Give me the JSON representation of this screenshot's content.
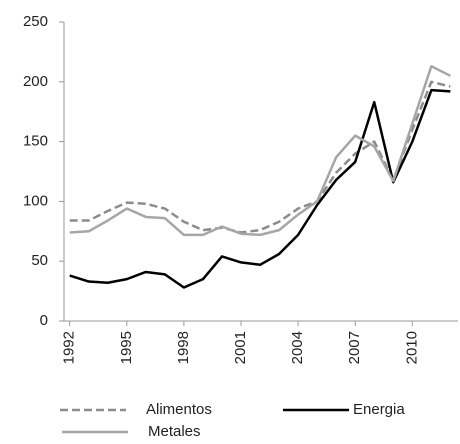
{
  "chart_data": {
    "type": "line",
    "x": [
      1992,
      1993,
      1994,
      1995,
      1996,
      1997,
      1998,
      1999,
      2000,
      2001,
      2002,
      2003,
      2004,
      2005,
      2006,
      2007,
      2008,
      2009,
      2010,
      2011,
      2012
    ],
    "series": [
      {
        "name": "Alimentos",
        "color": "#8c8c8c",
        "dashed": true,
        "values": [
          84,
          84,
          92,
          99,
          98,
          94,
          83,
          76,
          78,
          74,
          76,
          83,
          94,
          100,
          124,
          140,
          150,
          118,
          160,
          200,
          196
        ]
      },
      {
        "name": "Energia",
        "color": "#000000",
        "dashed": false,
        "values": [
          38,
          33,
          32,
          35,
          41,
          39,
          28,
          35,
          54,
          49,
          47,
          56,
          72,
          97,
          118,
          133,
          183,
          116,
          150,
          193,
          192
        ]
      },
      {
        "name": "Metales",
        "color": "#a6a6a6",
        "dashed": false,
        "values": [
          74,
          75,
          84,
          94,
          87,
          86,
          72,
          72,
          79,
          73,
          72,
          76,
          89,
          100,
          137,
          155,
          146,
          117,
          165,
          213,
          205
        ]
      }
    ],
    "xlim": [
      1991.7,
      2012.4
    ],
    "xticks": [
      1992,
      1995,
      1998,
      2001,
      2004,
      2007,
      2010
    ],
    "ylim": [
      0,
      250
    ],
    "yticks": [
      0,
      50,
      100,
      150,
      200,
      250
    ],
    "grid": false,
    "legend": "bottom"
  }
}
